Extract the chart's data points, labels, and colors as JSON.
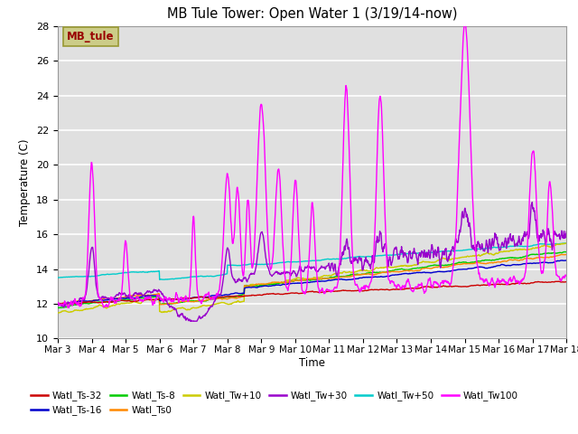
{
  "title": "MB Tule Tower: Open Water 1 (3/19/14-now)",
  "xlabel": "Time",
  "ylabel": "Temperature (C)",
  "ylim": [
    10,
    28
  ],
  "yticks": [
    10,
    12,
    14,
    16,
    18,
    20,
    22,
    24,
    26,
    28
  ],
  "background_color": "#ffffff",
  "plot_bg_color": "#e0e0e0",
  "series": {
    "Watl_Ts-32": {
      "color": "#cc0000"
    },
    "Watl_Ts-16": {
      "color": "#0000cc"
    },
    "Watl_Ts-8": {
      "color": "#00cc00"
    },
    "Watl_Ts0": {
      "color": "#ff8800"
    },
    "Watl_Tw+10": {
      "color": "#cccc00"
    },
    "Watl_Tw+30": {
      "color": "#9900cc"
    },
    "Watl_Tw+50": {
      "color": "#00cccc"
    },
    "Watl_Tw100": {
      "color": "#ff00ff"
    }
  },
  "legend_label": "MB_tule",
  "legend_label_color": "#990000",
  "legend_box_facecolor": "#cccc88",
  "legend_box_edgecolor": "#999933"
}
